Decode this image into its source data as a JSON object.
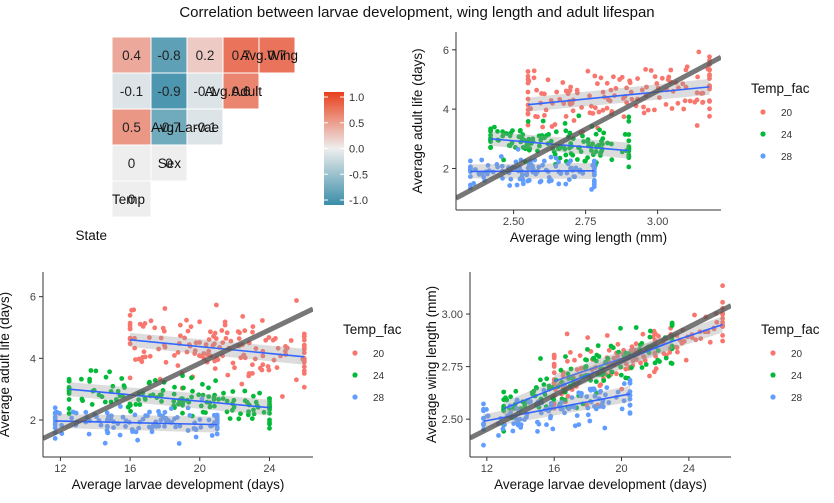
{
  "figure": {
    "title": "Correlation between larvae development, wing length and adult lifespan"
  },
  "chart_data": [
    {
      "type": "heatmap",
      "variables": [
        "State",
        "Temp",
        "Sex",
        "Avg.Larvae",
        "Avg.Adult",
        "Avg.Wing"
      ],
      "cells": [
        {
          "row": "Temp",
          "col": "State",
          "value": 0,
          "label": "0"
        },
        {
          "row": "Sex",
          "col": "State",
          "value": 0,
          "label": "0"
        },
        {
          "row": "Sex",
          "col": "Temp",
          "value": 0,
          "label": "0"
        },
        {
          "row": "Avg.Larvae",
          "col": "State",
          "value": 0.5,
          "label": "0.5"
        },
        {
          "row": "Avg.Larvae",
          "col": "Temp",
          "value": -0.7,
          "label": "-0.7"
        },
        {
          "row": "Avg.Larvae",
          "col": "Sex",
          "value": -0.1,
          "label": "-0.1"
        },
        {
          "row": "Avg.Adult",
          "col": "State",
          "value": -0.1,
          "label": "-0.1"
        },
        {
          "row": "Avg.Adult",
          "col": "Temp",
          "value": -0.9,
          "label": "-0.9"
        },
        {
          "row": "Avg.Adult",
          "col": "Sex",
          "value": -0.1,
          "label": "-0.1"
        },
        {
          "row": "Avg.Adult",
          "col": "Avg.Larvae",
          "value": 0.6,
          "label": "0.6"
        },
        {
          "row": "Avg.Wing",
          "col": "State",
          "value": 0.4,
          "label": "0.4"
        },
        {
          "row": "Avg.Wing",
          "col": "Temp",
          "value": -0.8,
          "label": "-0.8"
        },
        {
          "row": "Avg.Wing",
          "col": "Sex",
          "value": 0.2,
          "label": "0.2"
        },
        {
          "row": "Avg.Wing",
          "col": "Avg.Larvae",
          "value": 0.7,
          "label": "0.7"
        },
        {
          "row": "Avg.Wing",
          "col": "Avg.Adult",
          "value": 0.7,
          "label": "0.7"
        }
      ],
      "colorbar": {
        "ticks": [
          "1.0",
          "0.5",
          "0.0",
          "-0.5",
          "-1.0"
        ],
        "low": "#3A8DA8",
        "mid": "#EEEEEE",
        "high": "#E8401C"
      }
    },
    {
      "type": "scatter",
      "xlabel": "Average wing length (mm)",
      "ylabel": "Average adult life (days)",
      "xlim": [
        2.3,
        3.22
      ],
      "ylim": [
        0.6,
        6.6
      ],
      "xticks": [
        "2.50",
        "2.75",
        "3.00"
      ],
      "yticks": [
        "2",
        "4",
        "6"
      ],
      "legend": {
        "title": "Temp_fac",
        "position": "right"
      },
      "overall_fit": {
        "x": [
          2.3,
          3.22
        ],
        "y": [
          1.0,
          5.75
        ]
      },
      "series": [
        {
          "name": "20",
          "color": "#F8766D",
          "x_range": [
            2.55,
            3.18
          ],
          "fit_y": [
            4.15,
            4.75
          ],
          "y_center": 4.45,
          "y_spread": 0.9,
          "n": 150
        },
        {
          "name": "24",
          "color": "#00BA38",
          "x_range": [
            2.42,
            2.9
          ],
          "fit_y": [
            3.0,
            2.6
          ],
          "y_center": 2.8,
          "y_spread": 0.6,
          "n": 140
        },
        {
          "name": "28",
          "color": "#619CFF",
          "x_range": [
            2.35,
            2.78
          ],
          "fit_y": [
            1.9,
            1.92
          ],
          "y_center": 1.9,
          "y_spread": 0.45,
          "n": 120
        }
      ]
    },
    {
      "type": "scatter",
      "xlabel": "Average larvae development (days)",
      "ylabel": "Average adult life (days)",
      "xlim": [
        11,
        26.5
      ],
      "ylim": [
        0.8,
        6.8
      ],
      "xticks": [
        "12",
        "16",
        "20",
        "24"
      ],
      "yticks": [
        "2",
        "4",
        "6"
      ],
      "legend": {
        "title": "Temp_fac",
        "position": "right"
      },
      "overall_fit": {
        "x": [
          11,
          26.5
        ],
        "y": [
          1.4,
          5.6
        ]
      },
      "series": [
        {
          "name": "20",
          "color": "#F8766D",
          "x_range": [
            16,
            26
          ],
          "fit_y": [
            4.6,
            4.05
          ],
          "y_center": 4.35,
          "y_spread": 1.0,
          "n": 150
        },
        {
          "name": "24",
          "color": "#00BA38",
          "x_range": [
            12.5,
            24
          ],
          "fit_y": [
            3.0,
            2.4
          ],
          "y_center": 2.7,
          "y_spread": 0.6,
          "n": 140
        },
        {
          "name": "28",
          "color": "#619CFF",
          "x_range": [
            11.7,
            21
          ],
          "fit_y": [
            1.97,
            1.85
          ],
          "y_center": 1.9,
          "y_spread": 0.45,
          "n": 120
        }
      ]
    },
    {
      "type": "scatter",
      "xlabel": "Average larvae development (days)",
      "ylabel": "Average wing length (mm)",
      "xlim": [
        11,
        26.5
      ],
      "ylim": [
        2.32,
        3.2
      ],
      "xticks": [
        "12",
        "16",
        "20",
        "24"
      ],
      "yticks": [
        "2.50",
        "2.75",
        "3.00"
      ],
      "legend": {
        "title": "Temp_fac",
        "position": "right"
      },
      "overall_fit": {
        "x": [
          11,
          26.5
        ],
        "y": [
          2.41,
          3.04
        ]
      },
      "series": [
        {
          "name": "20",
          "color": "#F8766D",
          "x_range": [
            16,
            26
          ],
          "fit_y": [
            2.68,
            2.95
          ],
          "y_center": 2.8,
          "y_spread": 0.12,
          "n": 150
        },
        {
          "name": "24",
          "color": "#00BA38",
          "x_range": [
            13,
            23
          ],
          "fit_y": [
            2.55,
            2.87
          ],
          "y_center": 2.7,
          "y_spread": 0.1,
          "n": 140
        },
        {
          "name": "28",
          "color": "#619CFF",
          "x_range": [
            11.8,
            20.5
          ],
          "fit_y": [
            2.49,
            2.62
          ],
          "y_center": 2.55,
          "y_spread": 0.09,
          "n": 120
        }
      ]
    }
  ]
}
